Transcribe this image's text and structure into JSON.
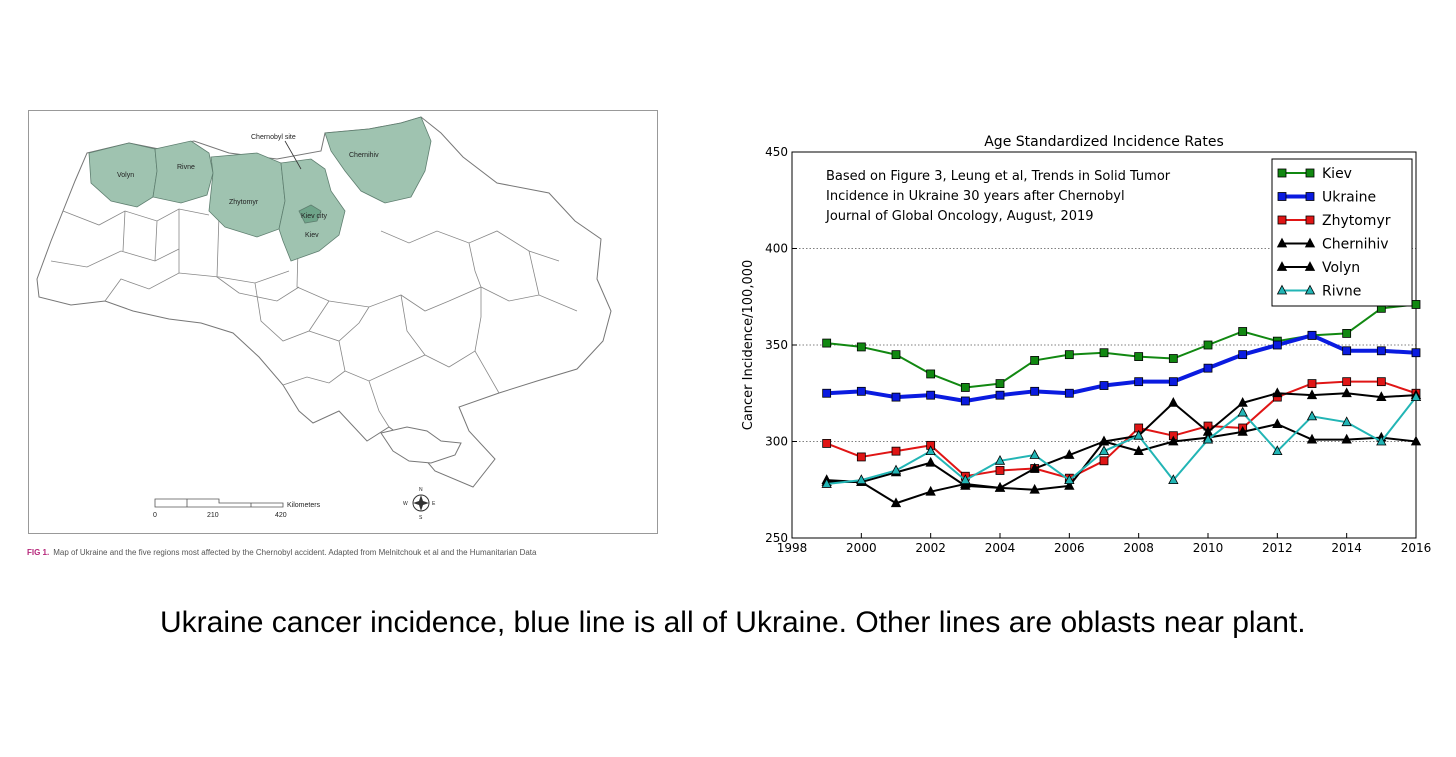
{
  "map": {
    "regions": {
      "volyn": "Volyn",
      "rivne": "Rivne",
      "zhytomyr": "Zhytomyr",
      "kiev_city": "Kiev city",
      "kiev": "Kiev",
      "chernihiv": "Chernihiv",
      "chernobyl": "Chernobyl site"
    },
    "scale": {
      "label": "Kilometers",
      "ticks": [
        "0",
        "210",
        "420"
      ]
    },
    "compass": {
      "n": "N",
      "s": "S",
      "e": "E",
      "w": "W"
    },
    "highlight_color": "#9fc3b0",
    "caption_label": "FIG 1.",
    "caption_text": "Map of Ukraine and the five regions most affected by the Chernobyl accident. Adapted from Melnitchouk et al and the Humanitarian Data"
  },
  "chart_data": {
    "type": "line",
    "title": "Age Standardized Incidence Rates",
    "xlabel": "",
    "ylabel": "Cancer Incidence/100,000",
    "xlim": [
      1998,
      2016
    ],
    "ylim": [
      250,
      450
    ],
    "xticks": [
      1998,
      2000,
      2002,
      2004,
      2006,
      2008,
      2010,
      2012,
      2014,
      2016
    ],
    "yticks": [
      250,
      300,
      350,
      400,
      450
    ],
    "grid": "horizontal dotted",
    "legend": "top-right",
    "annotation": [
      "Based on Figure 3, Leung et al, Trends in Solid Tumor",
      "Incidence in Ukraine 30 years after Chernobyl",
      "Journal of Global Oncology, August, 2019"
    ],
    "x": [
      1999,
      2000,
      2001,
      2002,
      2003,
      2004,
      2005,
      2006,
      2007,
      2008,
      2009,
      2010,
      2011,
      2012,
      2013,
      2014,
      2015,
      2016
    ],
    "series": [
      {
        "name": "Kiev",
        "color": "#118811",
        "marker": "square",
        "width": 2,
        "values": [
          351,
          349,
          345,
          335,
          328,
          330,
          342,
          345,
          346,
          344,
          343,
          350,
          357,
          352,
          355,
          356,
          369,
          371
        ]
      },
      {
        "name": "Ukraine",
        "color": "#0a1be0",
        "marker": "square",
        "width": 4,
        "values": [
          325,
          326,
          323,
          324,
          321,
          324,
          326,
          325,
          329,
          331,
          331,
          338,
          345,
          350,
          355,
          347,
          347,
          346
        ]
      },
      {
        "name": "Zhytomyr",
        "color": "#e01515",
        "marker": "square",
        "width": 2,
        "values": [
          299,
          292,
          295,
          298,
          282,
          285,
          286,
          281,
          290,
          307,
          303,
          308,
          307,
          323,
          330,
          331,
          331,
          325
        ]
      },
      {
        "name": "Chernihiv",
        "color": "#000000",
        "marker": "triangle",
        "width": 2,
        "values": [
          280,
          279,
          284,
          289,
          277,
          276,
          275,
          277,
          300,
          303,
          320,
          305,
          320,
          325,
          324,
          325,
          323,
          324
        ]
      },
      {
        "name": "Volyn",
        "color": "#000000",
        "marker": "triangle",
        "width": 2,
        "values": [
          279,
          279,
          268,
          274,
          278,
          276,
          286,
          293,
          300,
          295,
          300,
          302,
          305,
          309,
          301,
          301,
          302,
          300
        ]
      },
      {
        "name": "Rivne",
        "color": "#22b5b5",
        "marker": "triangle",
        "width": 2,
        "values": [
          278,
          280,
          285,
          295,
          280,
          290,
          293,
          280,
          295,
          303,
          280,
          301,
          315,
          295,
          313,
          310,
          300,
          323
        ]
      }
    ]
  },
  "caption": "Ukraine cancer incidence, blue line is all of Ukraine. Other lines are oblasts near plant."
}
